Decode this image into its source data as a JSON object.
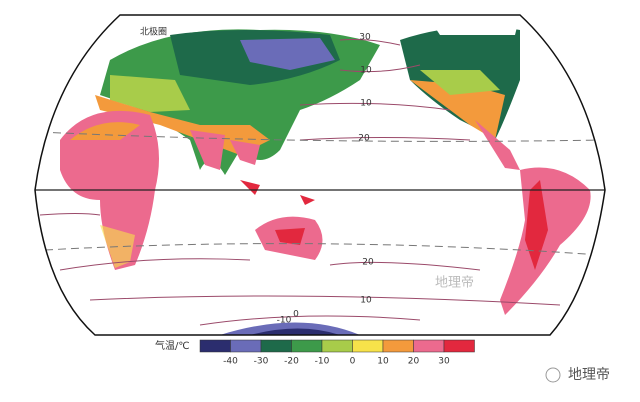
{
  "map": {
    "circle_label": "北极圈",
    "isotherm_labels": [
      30,
      10,
      10,
      20,
      20,
      10,
      0,
      -10
    ],
    "watermark": "地理帝"
  },
  "legend": {
    "title": "气温/℃",
    "colors": [
      "#2b2d6e",
      "#6a6cb8",
      "#1e6a4a",
      "#3d9a4a",
      "#a8cc4a",
      "#f7e24a",
      "#f39a3c",
      "#ec6a8e",
      "#e2283e"
    ],
    "ticks": [
      -40,
      -30,
      -20,
      -10,
      0,
      10,
      20,
      30
    ]
  },
  "brand": "地理帝"
}
